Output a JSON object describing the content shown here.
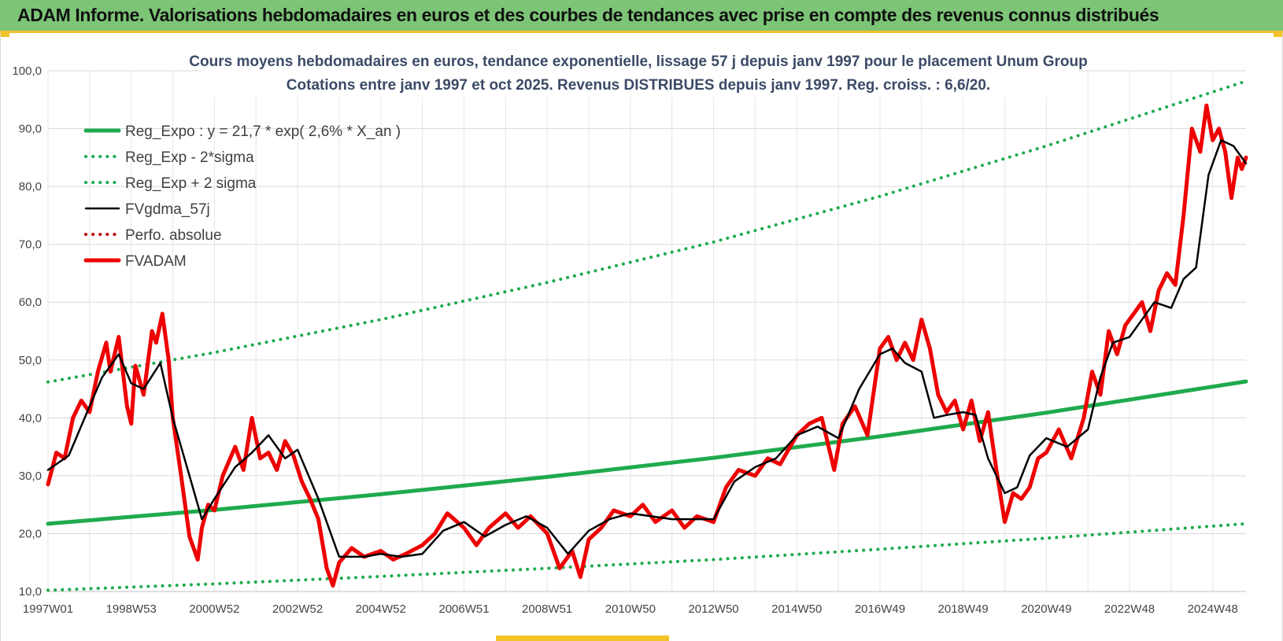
{
  "header": {
    "title": "ADAM Informe. Valorisations hebdomadaires en euros et des courbes de tendances avec prise en compte des revenus connus distribués"
  },
  "chart_data": {
    "type": "line",
    "title_line1": "Cours moyens hebdomadaires en euros, tendance exponentielle, lissage 57 j depuis janv 1997 pour le placement Unum Group",
    "title_line2": "Cotations entre janv 1997 et oct 2025. Revenus DISTRIBUES depuis janv 1997. Reg. croiss. : 6,6/20.",
    "xlabel": "",
    "ylabel": "",
    "x_range": [
      1997.0,
      2025.8
    ],
    "ylim": [
      10,
      100
    ],
    "y_ticks": [
      "10,0",
      "20,0",
      "30,0",
      "40,0",
      "50,0",
      "60,0",
      "70,0",
      "80,0",
      "90,0",
      "100,0"
    ],
    "y_tick_values": [
      10,
      20,
      30,
      40,
      50,
      60,
      70,
      80,
      90,
      100
    ],
    "x_tick_labels": [
      "1997W01",
      "1998W53",
      "2000W52",
      "2002W52",
      "2004W52",
      "2006W51",
      "2008W51",
      "2010W50",
      "2012W50",
      "2014W50",
      "2016W49",
      "2018W49",
      "2020W49",
      "2022W48",
      "2024W48"
    ],
    "x_tick_positions": [
      1997.0,
      1999.0,
      2001.0,
      2003.0,
      2005.0,
      2007.0,
      2009.0,
      2011.0,
      2013.0,
      2015.0,
      2017.0,
      2019.0,
      2021.0,
      2023.0,
      2025.0
    ],
    "grid": true,
    "legend_position": "top-left",
    "series": [
      {
        "name": "Reg_Expo : y = 21,7 * exp( 2,6% *  X_an )",
        "style": "solid-thick",
        "color": "#1faa4d",
        "x": [
          1997.0,
          2001.0,
          2005.0,
          2009.0,
          2013.0,
          2017.0,
          2021.0,
          2025.8
        ],
        "values": [
          21.7,
          24.1,
          26.8,
          29.8,
          33.1,
          36.8,
          40.9,
          46.3
        ]
      },
      {
        "name": "Reg_Exp - 2*sigma",
        "style": "dotted",
        "color": "#1faa4d",
        "x": [
          1997.0,
          2001.0,
          2005.0,
          2009.0,
          2013.0,
          2017.0,
          2021.0,
          2025.8
        ],
        "values": [
          10.2,
          11.3,
          12.6,
          14.0,
          15.5,
          17.3,
          19.2,
          21.7
        ]
      },
      {
        "name": "Reg_Exp + 2 sigma",
        "style": "dotted",
        "color": "#1faa4d",
        "x": [
          1997.0,
          2001.0,
          2005.0,
          2009.0,
          2013.0,
          2017.0,
          2021.0,
          2025.8
        ],
        "values": [
          46.2,
          51.3,
          57.0,
          63.4,
          70.4,
          78.3,
          87.0,
          98.2
        ]
      },
      {
        "name": "FVgdma_57j",
        "style": "solid",
        "color": "#000000",
        "x": [
          1997.0,
          1997.5,
          1998.0,
          1998.3,
          1998.7,
          1999.0,
          1999.3,
          1999.7,
          2000.0,
          2000.4,
          2000.7,
          2001.0,
          2001.5,
          2001.9,
          2002.3,
          2002.7,
          2003.0,
          2003.5,
          2004.0,
          2004.6,
          2005.0,
          2005.5,
          2006.0,
          2006.5,
          2007.0,
          2007.5,
          2008.0,
          2008.5,
          2009.0,
          2009.5,
          2010.0,
          2010.5,
          2011.0,
          2011.5,
          2012.0,
          2012.5,
          2013.0,
          2013.5,
          2014.0,
          2014.5,
          2015.0,
          2015.5,
          2016.0,
          2016.5,
          2017.0,
          2017.3,
          2017.6,
          2018.0,
          2018.3,
          2018.6,
          2019.0,
          2019.3,
          2019.6,
          2020.0,
          2020.3,
          2020.6,
          2021.0,
          2021.5,
          2022.0,
          2022.3,
          2022.6,
          2023.0,
          2023.3,
          2023.6,
          2024.0,
          2024.3,
          2024.6,
          2024.9,
          2025.2,
          2025.5,
          2025.8
        ],
        "values": [
          31.0,
          33.5,
          42.0,
          47.0,
          51.0,
          46.0,
          45.0,
          49.5,
          40.0,
          30.0,
          22.5,
          26.0,
          31.5,
          34.0,
          37.0,
          33.0,
          34.5,
          26.0,
          16.0,
          16.0,
          16.5,
          16.0,
          16.5,
          20.5,
          22.0,
          19.5,
          21.5,
          23.0,
          21.0,
          16.5,
          20.5,
          22.5,
          23.5,
          23.0,
          22.5,
          22.5,
          22.5,
          29.0,
          31.5,
          33.0,
          37.0,
          38.5,
          36.5,
          45.0,
          51.0,
          52.0,
          49.5,
          48.0,
          40.0,
          40.5,
          41.0,
          40.5,
          33.0,
          27.0,
          28.0,
          33.5,
          36.5,
          35.0,
          38.0,
          47.0,
          53.0,
          54.0,
          57.0,
          60.0,
          59.0,
          64.0,
          66.0,
          82.0,
          88.0,
          87.0,
          84.0
        ]
      },
      {
        "name": "Perfo. absolue",
        "style": "dotted",
        "color": "#c00000",
        "x": [],
        "values": []
      },
      {
        "name": "FVADAM",
        "style": "solid-thick",
        "color": "#ee0000",
        "x": [
          1997.0,
          1997.2,
          1997.4,
          1997.6,
          1997.8,
          1998.0,
          1998.2,
          1998.4,
          1998.5,
          1998.7,
          1998.9,
          1999.0,
          1999.1,
          1999.3,
          1999.5,
          1999.6,
          1999.75,
          1999.9,
          2000.0,
          2000.2,
          2000.4,
          2000.6,
          2000.7,
          2000.85,
          2001.0,
          2001.2,
          2001.5,
          2001.7,
          2001.9,
          2002.1,
          2002.3,
          2002.5,
          2002.7,
          2002.9,
          2003.1,
          2003.3,
          2003.5,
          2003.7,
          2003.85,
          2004.0,
          2004.3,
          2004.6,
          2005.0,
          2005.3,
          2005.6,
          2006.0,
          2006.3,
          2006.6,
          2007.0,
          2007.3,
          2007.6,
          2008.0,
          2008.3,
          2008.6,
          2009.0,
          2009.3,
          2009.6,
          2009.8,
          2010.0,
          2010.3,
          2010.6,
          2011.0,
          2011.3,
          2011.6,
          2012.0,
          2012.3,
          2012.6,
          2013.0,
          2013.3,
          2013.6,
          2014.0,
          2014.3,
          2014.6,
          2015.0,
          2015.3,
          2015.6,
          2015.9,
          2016.1,
          2016.4,
          2016.7,
          2017.0,
          2017.2,
          2017.4,
          2017.6,
          2017.8,
          2018.0,
          2018.2,
          2018.4,
          2018.6,
          2018.8,
          2019.0,
          2019.2,
          2019.4,
          2019.6,
          2019.8,
          2020.0,
          2020.2,
          2020.4,
          2020.6,
          2020.8,
          2021.0,
          2021.3,
          2021.6,
          2021.9,
          2022.1,
          2022.3,
          2022.5,
          2022.7,
          2022.9,
          2023.1,
          2023.3,
          2023.5,
          2023.7,
          2023.9,
          2024.1,
          2024.3,
          2024.5,
          2024.7,
          2024.85,
          2025.0,
          2025.15,
          2025.3,
          2025.45,
          2025.6,
          2025.7,
          2025.8
        ],
        "values": [
          28.5,
          34.0,
          33.0,
          40.0,
          43.0,
          41.0,
          48.0,
          53.0,
          48.0,
          54.0,
          42.0,
          39.0,
          49.0,
          44.0,
          55.0,
          53.0,
          58.0,
          50.0,
          40.0,
          30.0,
          19.5,
          15.5,
          21.0,
          25.0,
          24.0,
          30.0,
          35.0,
          31.0,
          40.0,
          33.0,
          34.0,
          31.0,
          36.0,
          33.5,
          29.0,
          26.0,
          22.5,
          14.0,
          11.0,
          15.0,
          17.5,
          16.0,
          17.0,
          15.5,
          16.5,
          18.0,
          20.0,
          23.5,
          21.0,
          18.0,
          21.0,
          23.5,
          21.0,
          23.0,
          20.0,
          14.0,
          17.0,
          12.5,
          19.0,
          21.0,
          24.0,
          23.0,
          25.0,
          22.0,
          24.0,
          21.0,
          23.0,
          22.0,
          28.0,
          31.0,
          30.0,
          33.0,
          32.0,
          37.0,
          39.0,
          40.0,
          31.0,
          39.0,
          42.0,
          37.0,
          52.0,
          54.0,
          50.0,
          53.0,
          50.0,
          57.0,
          52.0,
          44.0,
          41.0,
          43.0,
          38.0,
          43.0,
          36.0,
          41.0,
          31.0,
          22.0,
          27.0,
          26.0,
          28.0,
          33.0,
          34.0,
          38.0,
          33.0,
          40.0,
          48.0,
          44.0,
          55.0,
          51.0,
          56.0,
          58.0,
          60.0,
          55.0,
          62.0,
          65.0,
          63.0,
          75.0,
          90.0,
          86.0,
          94.0,
          88.0,
          90.0,
          86.0,
          78.0,
          85.0,
          83.0,
          85.0
        ]
      }
    ]
  }
}
